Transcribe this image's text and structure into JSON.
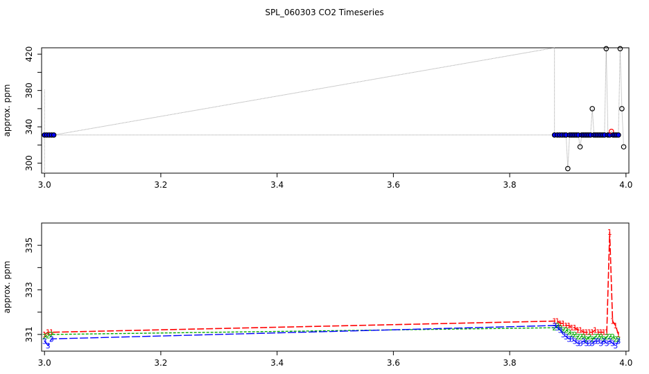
{
  "title": "SPL_060303  CO2 Timeseries",
  "chart_data": [
    {
      "type": "scatter",
      "title": "",
      "xlabel": "",
      "ylabel": "approx. ppm",
      "xlim": [
        2.995,
        4.005
      ],
      "ylim": [
        289,
        427
      ],
      "xticks": [
        "3.0",
        "3.2",
        "3.4",
        "3.6",
        "3.8",
        "4.0"
      ],
      "yticks": [
        "300",
        "340",
        "380",
        "420"
      ],
      "grid": false,
      "series": [
        {
          "x": [
            3.0,
            3.004,
            3.008,
            3.012,
            3.016,
            3.877,
            3.882,
            3.886,
            3.89,
            3.894,
            3.897,
            3.9,
            3.903,
            3.906,
            3.909,
            3.912,
            3.915,
            3.918,
            3.921,
            3.924,
            3.927,
            3.93,
            3.933,
            3.936,
            3.939,
            3.942,
            3.945,
            3.948,
            3.951,
            3.954,
            3.957,
            3.96,
            3.963,
            3.966,
            3.969,
            3.972,
            3.975,
            3.978,
            3.981,
            3.984,
            3.987,
            3.99,
            3.993,
            3.996
          ],
          "y": [
            331,
            331,
            331,
            331,
            331,
            331,
            331,
            331,
            331,
            331,
            331,
            294,
            331,
            331,
            331,
            331,
            331,
            331,
            318,
            331,
            331,
            331,
            331,
            331,
            331,
            360,
            331,
            331,
            331,
            331,
            331,
            331,
            331,
            426,
            331,
            331,
            335,
            331,
            331,
            331,
            331,
            426,
            360,
            318
          ],
          "color": "#0000ff",
          "outline": "#000000"
        }
      ]
    },
    {
      "type": "line",
      "title": "",
      "xlabel": "",
      "ylabel": "approx. ppm",
      "xlim": [
        2.995,
        4.005
      ],
      "ylim": [
        330.25,
        336.0
      ],
      "xticks": [
        "3.0",
        "3.2",
        "3.4",
        "3.6",
        "3.8",
        "4.0"
      ],
      "yticks": [
        "331",
        "333",
        "335"
      ],
      "grid": false,
      "series": [
        {
          "symbol": "1",
          "color": "#ff0000",
          "x": [
            3.0,
            3.006,
            3.012,
            3.877,
            3.882,
            3.887,
            3.892,
            3.897,
            3.902,
            3.907,
            3.912,
            3.917,
            3.922,
            3.927,
            3.932,
            3.937,
            3.942,
            3.947,
            3.952,
            3.957,
            3.962,
            3.967,
            3.972,
            3.977,
            3.982,
            3.987
          ],
          "y": [
            331.0,
            331.1,
            331.1,
            331.6,
            331.6,
            331.5,
            331.5,
            331.4,
            331.4,
            331.3,
            331.3,
            331.2,
            331.2,
            331.1,
            331.1,
            331.1,
            331.1,
            331.2,
            331.1,
            331.1,
            331.1,
            331.1,
            335.6,
            331.6,
            331.4,
            331.0
          ]
        },
        {
          "symbol": "2",
          "color": "#00aa00",
          "x": [
            3.0,
            3.006,
            3.012,
            3.877,
            3.882,
            3.887,
            3.892,
            3.897,
            3.902,
            3.907,
            3.912,
            3.917,
            3.922,
            3.927,
            3.932,
            3.937,
            3.942,
            3.947,
            3.952,
            3.957,
            3.962,
            3.967,
            3.972,
            3.977,
            3.982,
            3.987
          ],
          "y": [
            330.9,
            330.95,
            331.0,
            331.3,
            331.4,
            331.3,
            331.2,
            331.2,
            331.1,
            331.0,
            331.0,
            330.9,
            330.9,
            330.9,
            330.8,
            330.9,
            330.8,
            330.9,
            330.9,
            330.9,
            330.8,
            330.9,
            330.9,
            330.9,
            330.8,
            330.8
          ]
        },
        {
          "symbol": "3",
          "color": "#0000ff",
          "x": [
            3.0,
            3.006,
            3.012,
            3.877,
            3.882,
            3.887,
            3.892,
            3.897,
            3.902,
            3.907,
            3.912,
            3.917,
            3.922,
            3.927,
            3.932,
            3.937,
            3.942,
            3.947,
            3.952,
            3.957,
            3.962,
            3.967,
            3.972,
            3.977,
            3.982,
            3.987
          ],
          "y": [
            330.7,
            330.5,
            330.8,
            331.4,
            331.3,
            331.2,
            331.0,
            330.9,
            330.8,
            330.8,
            330.7,
            330.6,
            330.6,
            330.7,
            330.6,
            330.6,
            330.6,
            330.7,
            330.7,
            330.6,
            330.7,
            330.6,
            330.7,
            330.6,
            330.5,
            330.7
          ]
        }
      ]
    }
  ]
}
